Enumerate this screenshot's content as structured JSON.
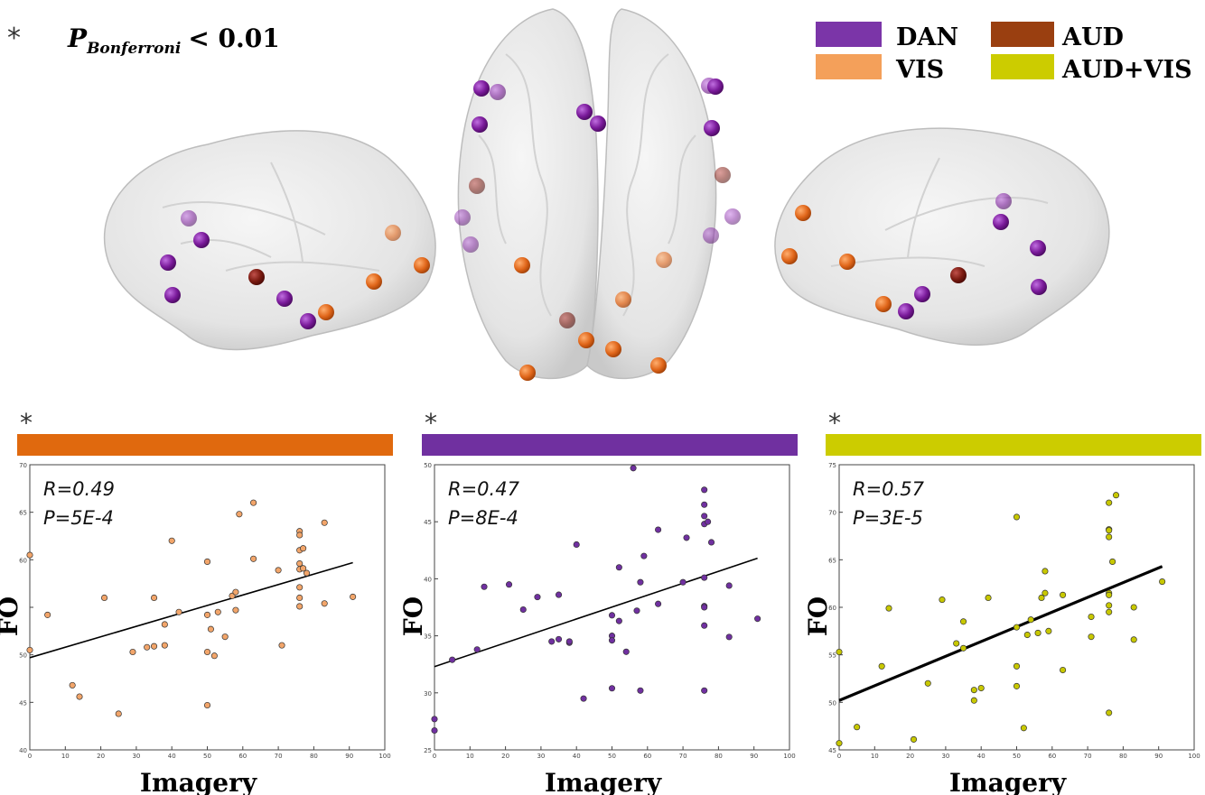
{
  "header": {
    "star": "*",
    "p_label": "P",
    "p_subscript": "Bonferroni",
    "p_threshold": "< 0.01"
  },
  "legend": [
    {
      "label": "DAN",
      "color": "#7b35a8"
    },
    {
      "label": "VIS",
      "color": "#f4a05a"
    },
    {
      "label": "AUD",
      "color": "#9a3f10"
    },
    {
      "label": "AUD+VIS",
      "color": "#cccc00"
    }
  ],
  "brain": {
    "node_colors": {
      "DAN": "#7a1a9a",
      "VIS": "#e0661a",
      "AUD": "#7a1a10"
    }
  },
  "chart_data": [
    {
      "type": "scatter",
      "network": "VIS",
      "bar_color": "#e0690e",
      "point_color": "#f2a56a",
      "star": "*",
      "xlabel": "Imagery",
      "ylabel": "FO",
      "xlim": [
        0,
        100
      ],
      "ylim": [
        40,
        70
      ],
      "xticks": [
        0,
        10,
        20,
        30,
        40,
        50,
        60,
        70,
        80,
        90,
        100
      ],
      "yticks": [
        40,
        45,
        50,
        55,
        60,
        65,
        70
      ],
      "ytick_labels": [
        "40",
        "45",
        "50",
        "",
        "60",
        "65",
        "70"
      ],
      "stats": [
        "R=0.49",
        "P=5E-4"
      ],
      "fit": {
        "x": [
          0,
          91
        ],
        "y": [
          49.7,
          59.7
        ]
      },
      "points": [
        [
          0,
          60.5
        ],
        [
          0,
          50.5
        ],
        [
          5,
          54.2
        ],
        [
          12,
          46.8
        ],
        [
          14,
          45.6
        ],
        [
          21,
          56
        ],
        [
          25,
          43.8
        ],
        [
          29,
          50.3
        ],
        [
          33,
          50.8
        ],
        [
          35,
          56
        ],
        [
          35,
          50.9
        ],
        [
          38,
          51
        ],
        [
          38,
          53.2
        ],
        [
          40,
          62
        ],
        [
          42,
          54.5
        ],
        [
          50,
          59.8
        ],
        [
          50,
          54.2
        ],
        [
          50,
          50.3
        ],
        [
          50,
          44.7
        ],
        [
          51,
          52.7
        ],
        [
          52,
          49.9
        ],
        [
          53,
          54.5
        ],
        [
          55,
          51.9
        ],
        [
          57,
          56.2
        ],
        [
          58,
          56.6
        ],
        [
          58,
          54.7
        ],
        [
          59,
          64.8
        ],
        [
          63,
          66
        ],
        [
          63,
          60.1
        ],
        [
          70,
          58.9
        ],
        [
          71,
          51
        ],
        [
          76,
          63
        ],
        [
          76,
          62.6
        ],
        [
          76,
          61
        ],
        [
          76,
          59.6
        ],
        [
          76,
          59
        ],
        [
          76,
          57.1
        ],
        [
          76,
          56
        ],
        [
          76,
          55.1
        ],
        [
          77,
          61.2
        ],
        [
          77,
          59.1
        ],
        [
          78,
          58.6
        ],
        [
          83,
          63.9
        ],
        [
          83,
          55.4
        ],
        [
          91,
          56.1
        ]
      ]
    },
    {
      "type": "scatter",
      "network": "DAN",
      "bar_color": "#7030a0",
      "point_color": "#7030a0",
      "star": "*",
      "xlabel": "Imagery",
      "ylabel": "FO",
      "xlim": [
        0,
        100
      ],
      "ylim": [
        25,
        50
      ],
      "xticks": [
        0,
        10,
        20,
        30,
        40,
        50,
        60,
        70,
        80,
        90,
        100
      ],
      "yticks": [
        25,
        30,
        35,
        40,
        45,
        50
      ],
      "ytick_labels": [
        "25",
        "30",
        "35",
        "40",
        "45",
        "50"
      ],
      "stats": [
        "R=0.47",
        "P=8E-4"
      ],
      "fit": {
        "x": [
          0,
          91
        ],
        "y": [
          32.3,
          41.8
        ]
      },
      "points": [
        [
          0,
          27.7
        ],
        [
          0,
          26.7
        ],
        [
          5,
          32.9
        ],
        [
          12,
          33.8
        ],
        [
          14,
          39.3
        ],
        [
          21,
          39.5
        ],
        [
          25,
          37.3
        ],
        [
          29,
          38.4
        ],
        [
          33,
          34.5
        ],
        [
          35,
          38.6
        ],
        [
          35,
          34.7
        ],
        [
          38,
          34.4
        ],
        [
          38,
          34.5
        ],
        [
          40,
          43
        ],
        [
          42,
          29.5
        ],
        [
          50,
          36.8
        ],
        [
          50,
          35
        ],
        [
          50,
          34.6
        ],
        [
          50,
          30.4
        ],
        [
          52,
          41
        ],
        [
          52,
          36.3
        ],
        [
          54,
          33.6
        ],
        [
          56,
          49.7
        ],
        [
          57,
          37.2
        ],
        [
          58,
          39.7
        ],
        [
          58,
          30.2
        ],
        [
          59,
          42
        ],
        [
          63,
          44.3
        ],
        [
          63,
          37.8
        ],
        [
          70,
          39.7
        ],
        [
          71,
          43.6
        ],
        [
          76,
          47.8
        ],
        [
          76,
          46.5
        ],
        [
          76,
          45.5
        ],
        [
          76,
          44.8
        ],
        [
          76,
          40.1
        ],
        [
          76,
          37.6
        ],
        [
          76,
          37.5
        ],
        [
          76,
          35.9
        ],
        [
          76,
          30.2
        ],
        [
          77,
          45
        ],
        [
          78,
          43.2
        ],
        [
          83,
          39.4
        ],
        [
          83,
          34.9
        ],
        [
          91,
          36.5
        ]
      ]
    },
    {
      "type": "scatter",
      "network": "AUD+VIS",
      "bar_color": "#cccc00",
      "point_color": "#c8c800",
      "star": "*",
      "xlabel": "Imagery",
      "ylabel": "FO",
      "xlim": [
        0,
        100
      ],
      "ylim": [
        45,
        75
      ],
      "xticks": [
        0,
        10,
        20,
        30,
        40,
        50,
        60,
        70,
        80,
        90,
        100
      ],
      "yticks": [
        45,
        50,
        55,
        60,
        65,
        70,
        75
      ],
      "ytick_labels": [
        "45",
        "50",
        "55",
        "60",
        "65",
        "70",
        "75"
      ],
      "stats": [
        "R=0.57",
        "P=3E-5"
      ],
      "fit": {
        "x": [
          0,
          91
        ],
        "y": [
          50.2,
          64.3
        ]
      },
      "points": [
        [
          0,
          55.3
        ],
        [
          0,
          45.7
        ],
        [
          5,
          47.4
        ],
        [
          12,
          53.8
        ],
        [
          14,
          59.9
        ],
        [
          21,
          46.1
        ],
        [
          25,
          52
        ],
        [
          29,
          60.8
        ],
        [
          33,
          56.2
        ],
        [
          35,
          58.5
        ],
        [
          35,
          55.7
        ],
        [
          38,
          51.3
        ],
        [
          38,
          50.2
        ],
        [
          40,
          51.5
        ],
        [
          42,
          61
        ],
        [
          50,
          69.5
        ],
        [
          50,
          57.9
        ],
        [
          50,
          53.8
        ],
        [
          50,
          51.7
        ],
        [
          52,
          47.3
        ],
        [
          53,
          57.1
        ],
        [
          54,
          58.7
        ],
        [
          56,
          57.3
        ],
        [
          57,
          61
        ],
        [
          58,
          63.8
        ],
        [
          58,
          61.5
        ],
        [
          59,
          57.5
        ],
        [
          63,
          61.3
        ],
        [
          63,
          53.4
        ],
        [
          71,
          59
        ],
        [
          71,
          56.9
        ],
        [
          76,
          71
        ],
        [
          76,
          68.2
        ],
        [
          76,
          68.1
        ],
        [
          76,
          67.4
        ],
        [
          76,
          61.5
        ],
        [
          76,
          61.3
        ],
        [
          76,
          60.2
        ],
        [
          76,
          59.5
        ],
        [
          76,
          48.9
        ],
        [
          77,
          64.8
        ],
        [
          78,
          71.8
        ],
        [
          83,
          60
        ],
        [
          83,
          56.6
        ],
        [
          91,
          62.7
        ]
      ]
    }
  ]
}
